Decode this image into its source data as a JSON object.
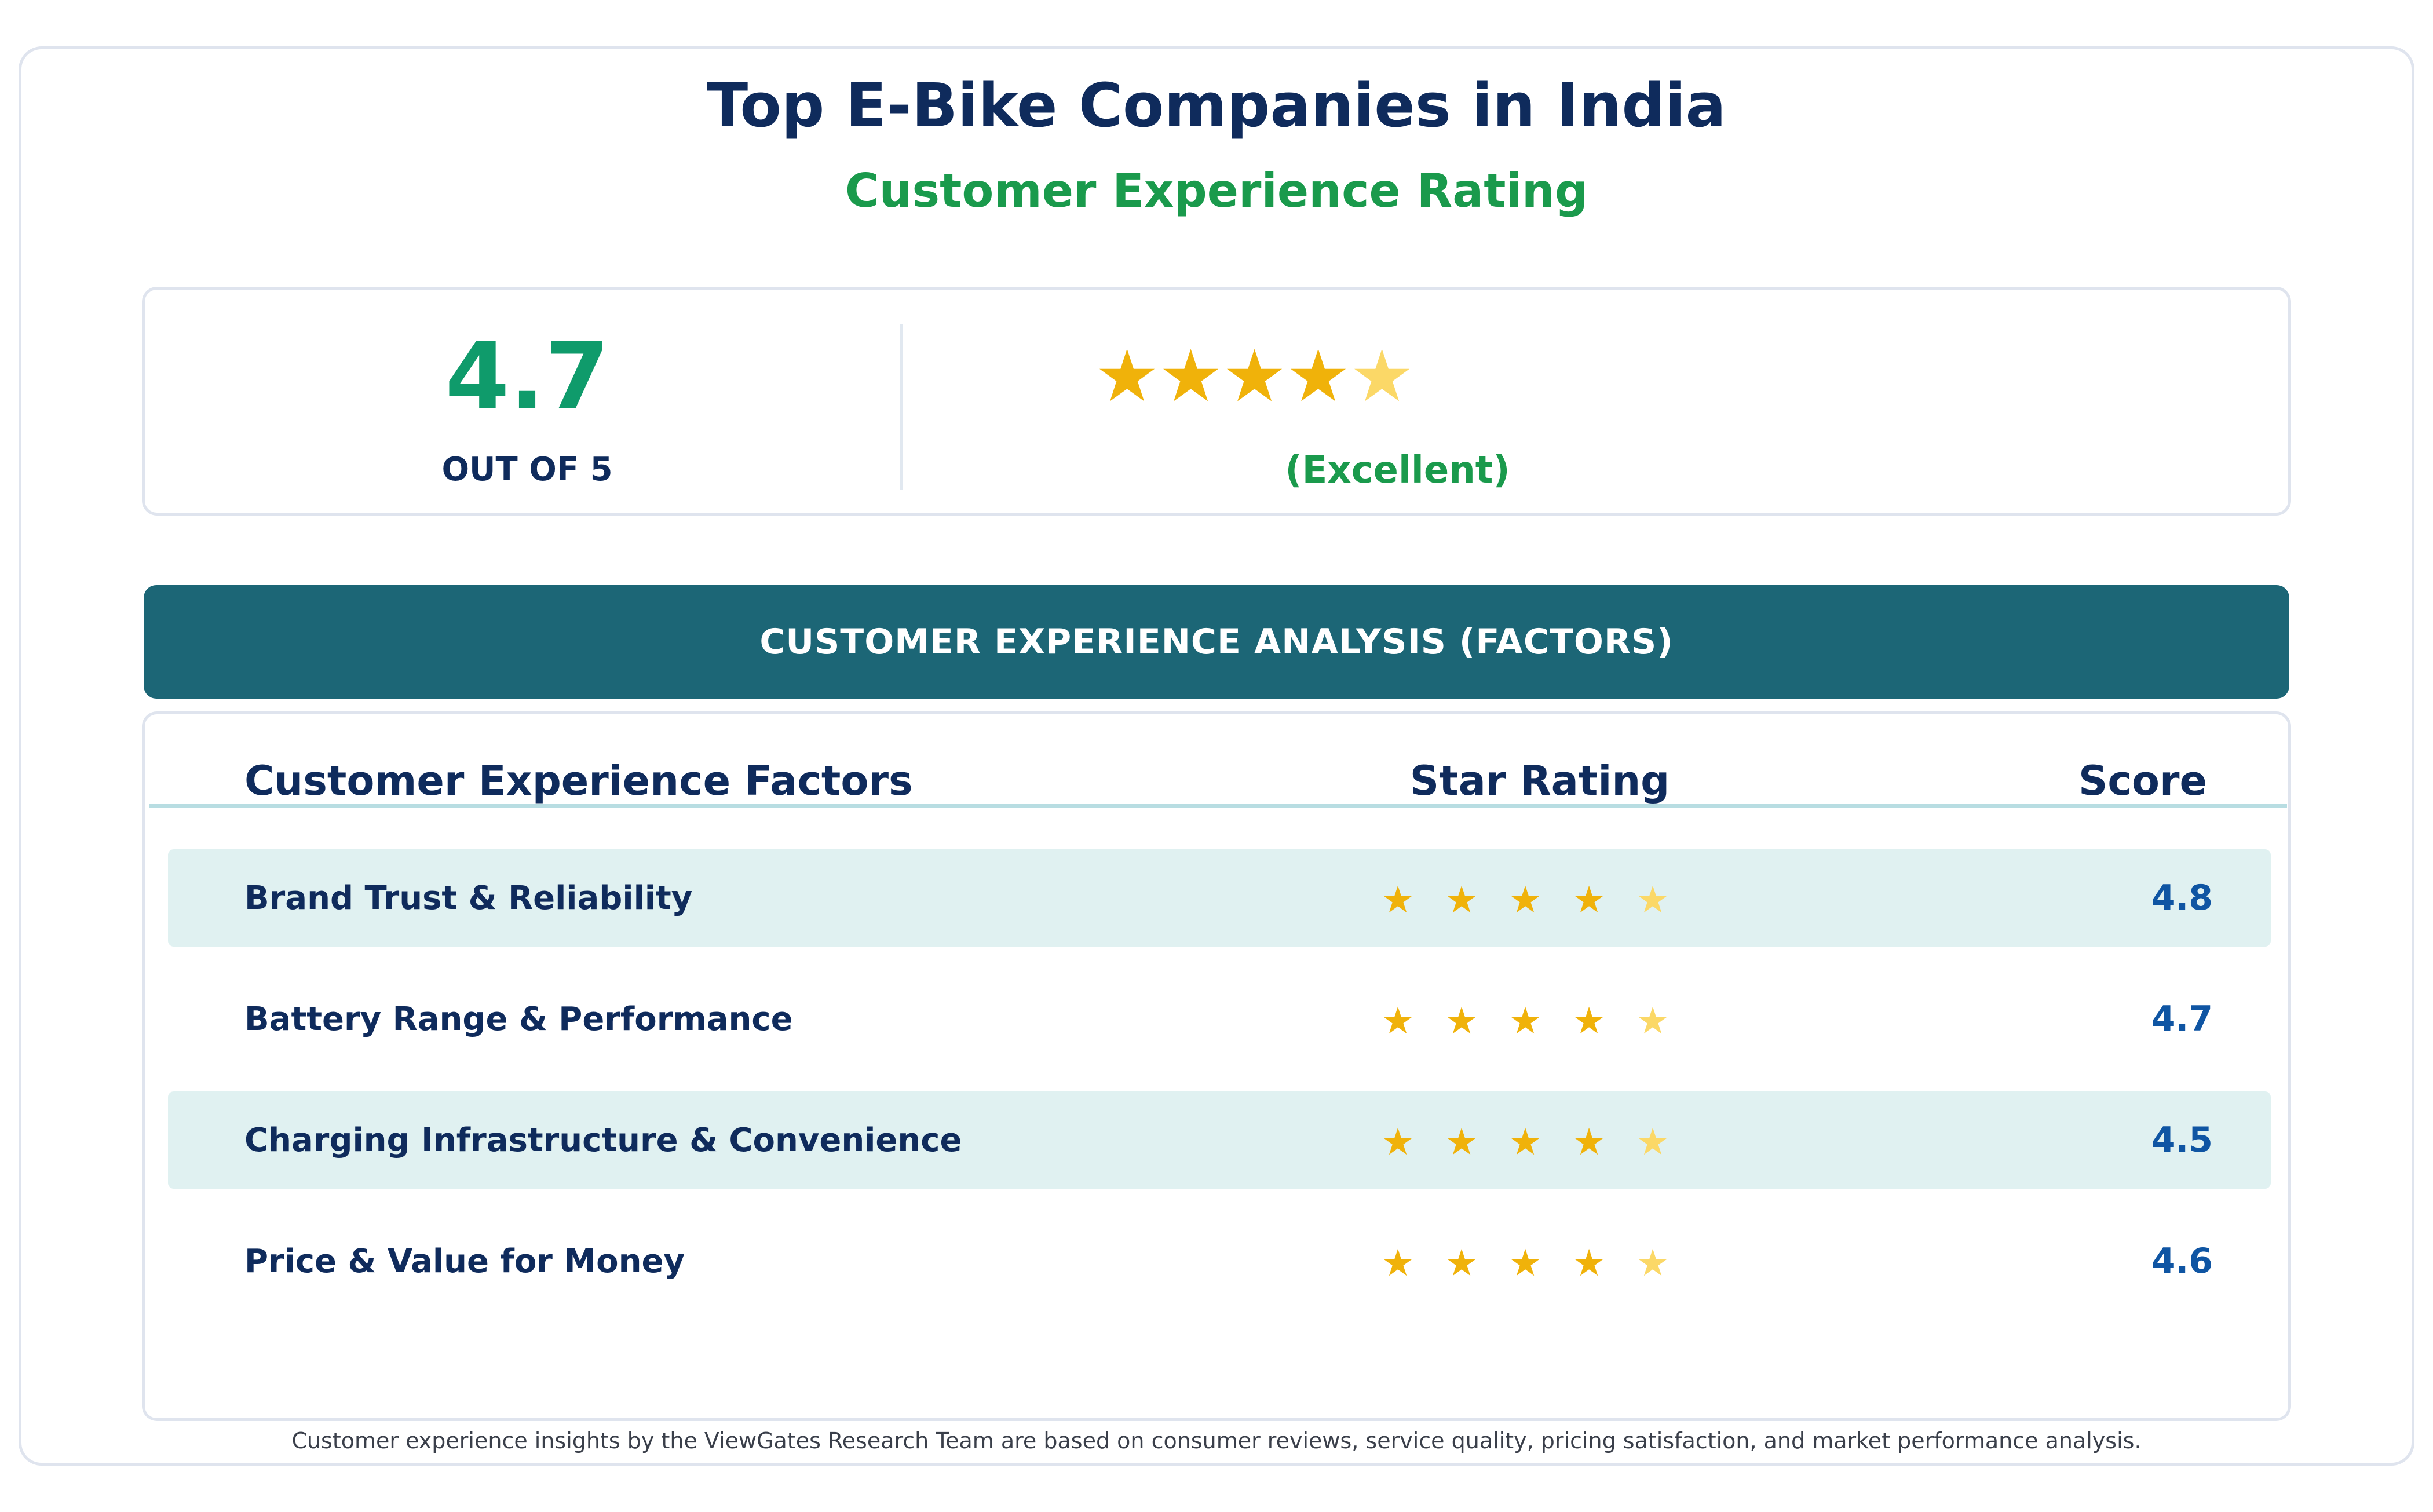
{
  "header": {
    "title": "Top E-Bike Companies in India",
    "subtitle": "Customer Experience Rating"
  },
  "summary": {
    "score": "4.7",
    "out_of": "OUT OF 5",
    "rating_word": "(Excellent)",
    "stars_value": 4.7,
    "stars_max": 5
  },
  "banner": {
    "text": "CUSTOMER EXPERIENCE ANALYSIS (FACTORS)"
  },
  "table": {
    "headers": {
      "factor": "Customer Experience Factors",
      "stars": "Star Rating",
      "score": "Score"
    },
    "rows": [
      {
        "factor": "Brand Trust & Reliability",
        "score": "4.8"
      },
      {
        "factor": "Battery Range & Performance",
        "score": "4.7"
      },
      {
        "factor": "Charging Infrastructure & Convenience",
        "score": "4.5"
      },
      {
        "factor": "Price & Value for Money",
        "score": "4.6"
      }
    ]
  },
  "footnote": "Customer experience insights by the ViewGates Research Team are based on consumer reviews, service quality, pricing satisfaction, and market performance analysis.",
  "colors": {
    "star_full": "#f0b20a",
    "star_partial": "#fbd867",
    "banner": "#1c6676",
    "row_shade": "#e0f1f1",
    "score_green": "#0f9b6b",
    "subtitle_green": "#1a9a4c",
    "navy": "#0f2b5c",
    "score_blue": "#0f55a3"
  },
  "icons": {
    "star": "star-icon"
  },
  "chart_data": {
    "type": "table",
    "title": "Top E-Bike Companies in India",
    "subtitle": "Customer Experience Rating",
    "overall": {
      "value": 4.7,
      "max": 5,
      "label": "(Excellent)"
    },
    "columns": [
      "Customer Experience Factors",
      "Star Rating",
      "Score"
    ],
    "categories": [
      "Brand Trust & Reliability",
      "Battery Range & Performance",
      "Charging Infrastructure & Convenience",
      "Price & Value for Money"
    ],
    "values": [
      4.8,
      4.7,
      4.5,
      4.6
    ],
    "scale_max": 5
  }
}
